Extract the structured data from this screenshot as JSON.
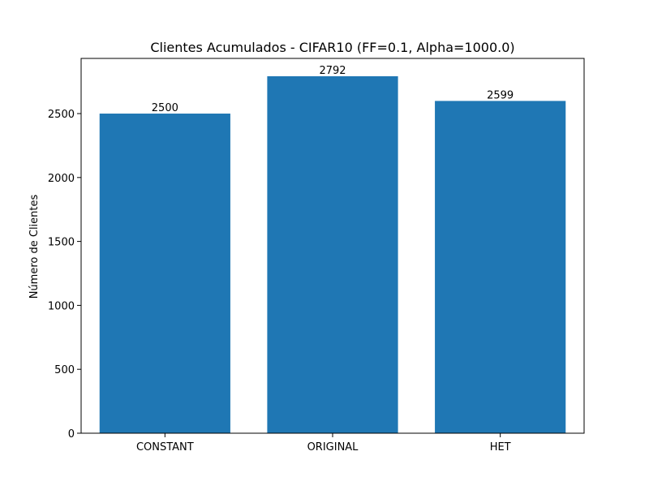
{
  "chart_data": {
    "type": "bar",
    "title": "Clientes Acumulados - CIFAR10 (FF=0.1, Alpha=1000.0)",
    "xlabel": "",
    "ylabel": "Número de Clientes",
    "categories": [
      "CONSTANT",
      "ORIGINAL",
      "HET"
    ],
    "values": [
      2500,
      2792,
      2599
    ],
    "data_labels": [
      "2500",
      "2792",
      "2599"
    ],
    "yticks": [
      0,
      500,
      1000,
      1500,
      2000,
      2500
    ],
    "ylim": [
      0,
      2931.6
    ],
    "bar_color": "#1f77b4",
    "grid": false,
    "legend": "none"
  }
}
